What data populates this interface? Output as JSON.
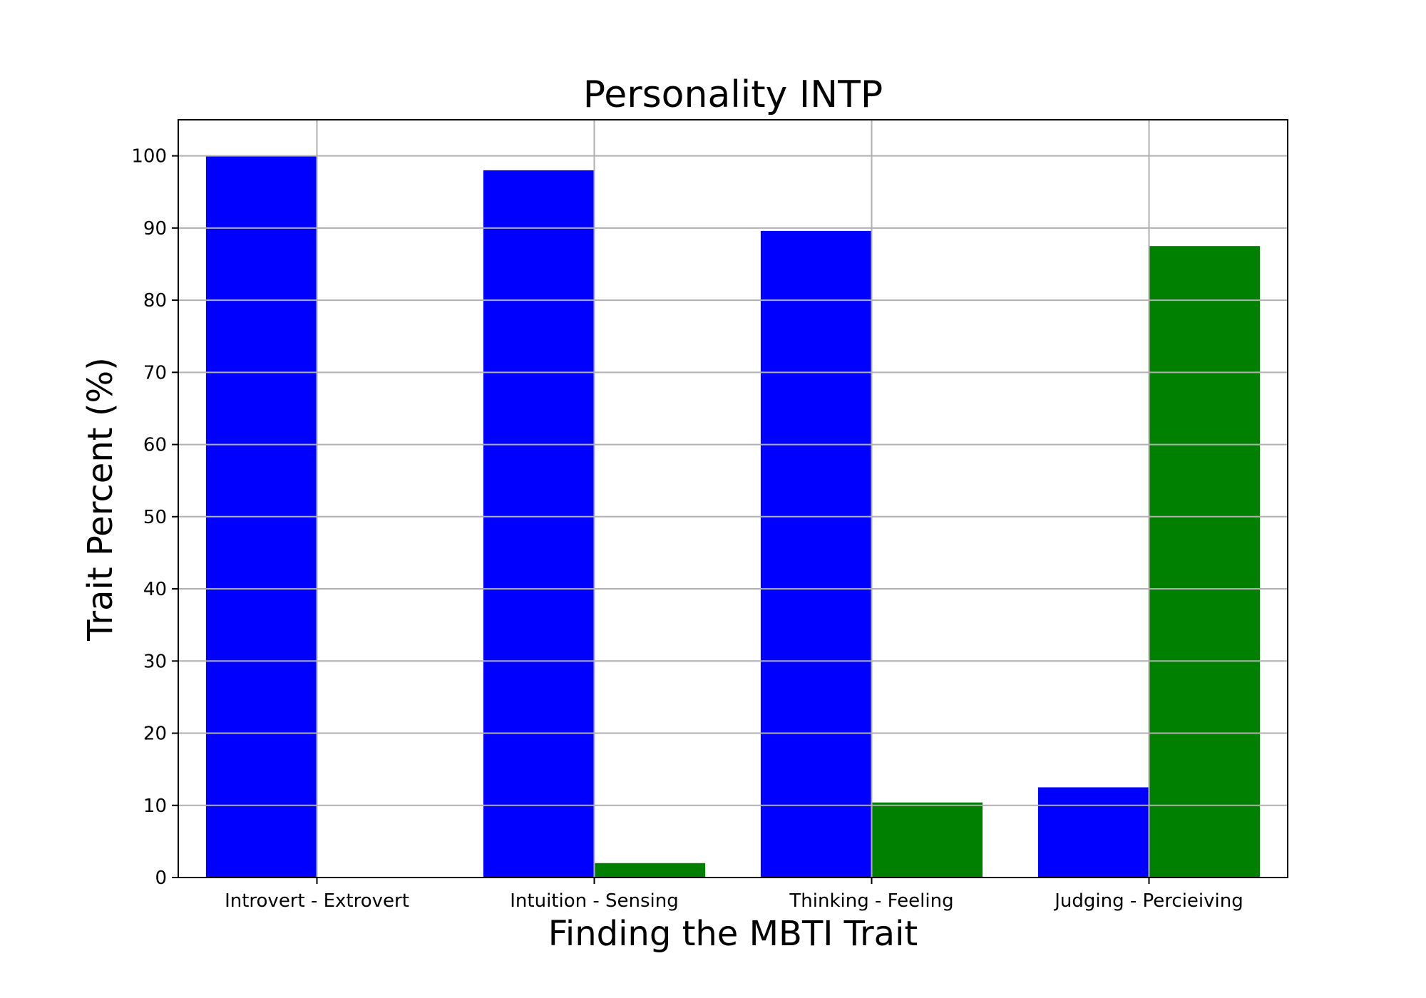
{
  "chart_data": {
    "type": "bar",
    "title": "Personality INTP",
    "xlabel": "Finding the MBTI Trait",
    "ylabel": "Trait Percent (%)",
    "categories": [
      "Introvert - Extrovert",
      "Intuition - Sensing",
      "Thinking - Feeling",
      "Judging - Percieiving"
    ],
    "series": [
      {
        "values": [
          100,
          98,
          89.6,
          12.5
        ],
        "color": "#0000ff"
      },
      {
        "values": [
          0,
          2,
          10.4,
          87.5
        ],
        "color": "#008000"
      }
    ],
    "ylim": [
      0,
      105
    ],
    "yticks": [
      "0",
      "10",
      "20",
      "30",
      "40",
      "50",
      "60",
      "70",
      "80",
      "90",
      "100"
    ],
    "grid": true,
    "legend": "none"
  }
}
